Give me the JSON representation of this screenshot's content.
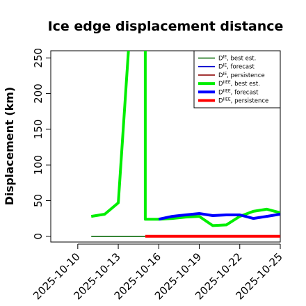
{
  "chart_data": {
    "type": "line",
    "title": "Ice edge displacement distance",
    "xlabel": "",
    "ylabel": "Displacement (km)",
    "x_axis": {
      "type": "date",
      "range": [
        "2025-10-08",
        "2025-10-25"
      ],
      "ticks": [
        "2025-10-10",
        "2025-10-13",
        "2025-10-16",
        "2025-10-19",
        "2025-10-22",
        "2025-10-25"
      ],
      "highlighted_tick": "2025-10-16",
      "highlight_color": "#228B22"
    },
    "y_axis": {
      "range": [
        -8,
        260
      ],
      "ticks": [
        0,
        50,
        100,
        150,
        200,
        250
      ]
    },
    "grid": false,
    "legend_position": "top-right",
    "series": [
      {
        "name": "D^IE, best est.",
        "sup": "IE",
        "suffix": ", best est.",
        "color": "#006400",
        "weight": "thin",
        "points": [
          [
            "2025-10-11",
            0
          ],
          [
            "2025-10-12",
            0
          ],
          [
            "2025-10-13",
            0
          ],
          [
            "2025-10-14",
            0
          ],
          [
            "2025-10-15",
            0
          ]
        ]
      },
      {
        "name": "D^IE, forecast",
        "sup": "IE",
        "suffix": ", forecast",
        "color": "#0000CD",
        "weight": "thin",
        "points": []
      },
      {
        "name": "D^IE, persistence",
        "sup": "IE",
        "suffix": ", persistence",
        "color": "#8B0000",
        "weight": "thin",
        "points": []
      },
      {
        "name": "D^IIEE, best est.",
        "sup": "IIEE",
        "suffix": ", best est.",
        "color": "#00EE00",
        "weight": "thick",
        "points": [
          [
            "2025-10-11",
            28
          ],
          [
            "2025-10-12",
            31
          ],
          [
            "2025-10-13",
            47
          ],
          [
            "2025-10-14",
            330
          ],
          [
            "2025-10-15",
            330
          ],
          [
            "2025-10-15.5",
            24
          ],
          [
            "2025-10-16",
            24
          ],
          [
            "2025-10-17",
            25
          ],
          [
            "2025-10-18",
            27
          ],
          [
            "2025-10-19",
            28
          ],
          [
            "2025-10-20",
            15
          ],
          [
            "2025-10-21",
            16
          ],
          [
            "2025-10-22",
            28
          ],
          [
            "2025-10-23",
            35
          ],
          [
            "2025-10-24",
            38
          ],
          [
            "2025-10-25",
            33
          ]
        ]
      },
      {
        "name": "D^IIEE, forecast",
        "sup": "IIEE",
        "suffix": ", forecast",
        "color": "#0000FF",
        "weight": "thick",
        "points": [
          [
            "2025-10-16",
            24
          ],
          [
            "2025-10-17",
            28
          ],
          [
            "2025-10-18",
            30
          ],
          [
            "2025-10-19",
            32
          ],
          [
            "2025-10-20",
            29
          ],
          [
            "2025-10-21",
            30
          ],
          [
            "2025-10-22",
            30
          ],
          [
            "2025-10-23",
            25
          ],
          [
            "2025-10-24",
            28
          ],
          [
            "2025-10-25",
            31
          ]
        ]
      },
      {
        "name": "D^IIEE, persistence",
        "sup": "IIEE",
        "suffix": ", persistence",
        "color": "#FF0000",
        "weight": "thick",
        "points": [
          [
            "2025-10-15",
            0
          ],
          [
            "2025-10-16",
            0
          ],
          [
            "2025-10-17",
            0
          ],
          [
            "2025-10-18",
            0
          ],
          [
            "2025-10-19",
            0
          ],
          [
            "2025-10-20",
            0
          ],
          [
            "2025-10-21",
            0
          ],
          [
            "2025-10-22",
            0
          ],
          [
            "2025-10-23",
            0
          ],
          [
            "2025-10-24",
            0
          ],
          [
            "2025-10-25",
            0
          ]
        ]
      }
    ]
  }
}
